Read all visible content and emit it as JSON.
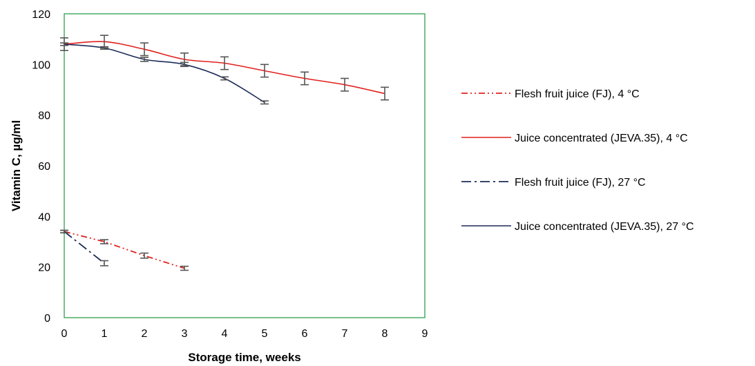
{
  "chart_data": {
    "type": "line",
    "xlabel": "Storage time, weeks",
    "ylabel": "Vitamin C, µg/ml",
    "xlim": [
      0,
      9
    ],
    "ylim": [
      0,
      120
    ],
    "xticks": [
      "0",
      "1",
      "2",
      "3",
      "4",
      "5",
      "6",
      "7",
      "8",
      "9"
    ],
    "yticks": [
      "0",
      "20",
      "40",
      "60",
      "80",
      "100",
      "120"
    ],
    "grid": false,
    "plot_border_color": "#2e9e4f",
    "legend_position": "right",
    "series": [
      {
        "name": "Flesh fruit juice (FJ), 4 °C",
        "color": "#e0201c",
        "style": "dash-dot-dot",
        "x": [
          0,
          1,
          2,
          3
        ],
        "y": [
          34,
          30,
          24.5,
          19.5
        ],
        "err": [
          0.5,
          0.8,
          1,
          0.8
        ]
      },
      {
        "name": "Juice concentrated (JEVA.35), 4 °C",
        "color": "#e0201c",
        "style": "solid",
        "x": [
          0,
          1,
          2,
          3,
          4,
          5,
          6,
          7,
          8
        ],
        "y": [
          108,
          109,
          106,
          102,
          100.5,
          97.5,
          94.5,
          92,
          88.5
        ],
        "err": [
          2.5,
          2.5,
          2.5,
          2.5,
          2.5,
          2.5,
          2.5,
          2.5,
          2.5
        ]
      },
      {
        "name": "Flesh fruit juice (FJ), 27 °C",
        "color": "#1b2a56",
        "style": "dash-dot",
        "x": [
          0,
          1
        ],
        "y": [
          34,
          21.5
        ],
        "err": [
          0.5,
          1
        ]
      },
      {
        "name": "Juice concentrated (JEVA.35), 27 °C",
        "color": "#1b2a56",
        "style": "solid",
        "x": [
          0,
          1,
          2,
          3,
          4,
          5
        ],
        "y": [
          108,
          106.5,
          102,
          100,
          94.5,
          85
        ],
        "err": [
          0.5,
          0.5,
          0.8,
          0.8,
          0.6,
          0.6
        ]
      }
    ]
  }
}
